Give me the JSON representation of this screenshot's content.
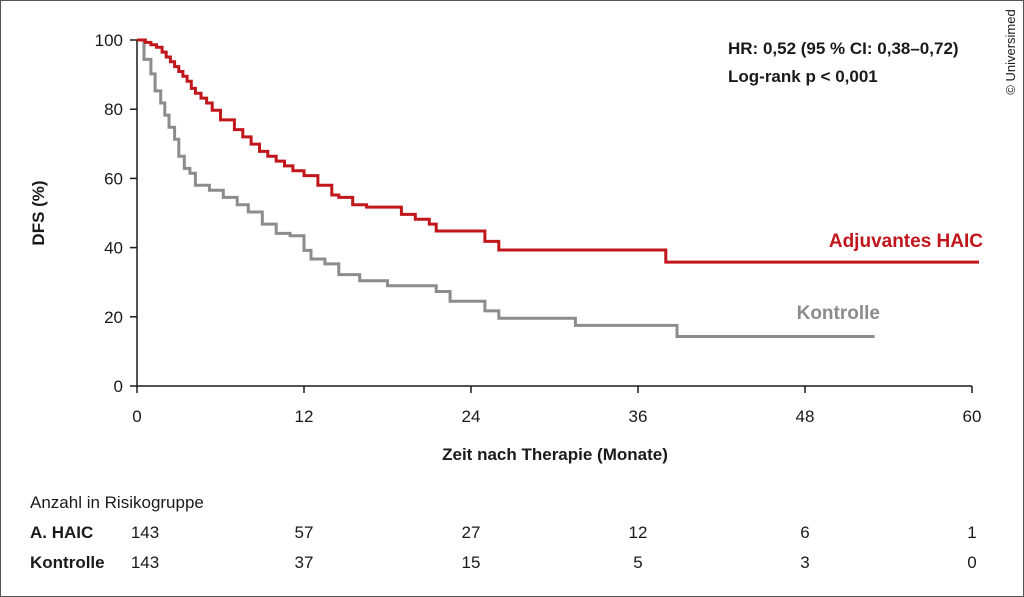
{
  "copyright": "© Universimed",
  "chart_data": {
    "type": "line",
    "step": true,
    "xlabel": "Zeit nach Therapie (Monate)",
    "ylabel": "DFS (%)",
    "xlim": [
      0,
      60
    ],
    "ylim": [
      0,
      100
    ],
    "xticks": [
      0,
      12,
      24,
      36,
      48,
      60
    ],
    "yticks": [
      0,
      20,
      40,
      60,
      80,
      100
    ],
    "grid": false,
    "annotations": {
      "hr": "HR: 0,52 (95 % CI: 0,38–0,72)",
      "logrank": "Log-rank p < 0,001"
    },
    "series": [
      {
        "name": "Adjuvantes HAIC",
        "color": "#c0161c",
        "x": [
          0,
          0.6,
          1.0,
          1.4,
          1.8,
          2.1,
          2.4,
          2.7,
          3.0,
          3.3,
          3.6,
          3.9,
          4.2,
          4.6,
          5.0,
          5.4,
          6.0,
          7.0,
          7.6,
          8.2,
          8.8,
          9.4,
          10.0,
          10.6,
          11.2,
          12.0,
          13.0,
          14.0,
          14.5,
          15.5,
          16.5,
          19.0,
          20.0,
          21.0,
          21.5,
          25.0,
          26.0,
          38.0,
          60.5
        ],
        "y": [
          100,
          99.3,
          98.6,
          97.9,
          96.5,
          95.1,
          93.7,
          92.3,
          90.9,
          89.5,
          88.1,
          86.0,
          84.6,
          83.2,
          81.8,
          79.7,
          76.9,
          74.1,
          72.0,
          69.9,
          67.8,
          66.4,
          65.0,
          63.6,
          62.2,
          60.8,
          58.0,
          55.2,
          54.5,
          52.4,
          51.7,
          49.6,
          48.2,
          46.8,
          44.8,
          41.8,
          39.3,
          35.8,
          35.8
        ]
      },
      {
        "name": "Kontrolle",
        "color": "#8c8c8c",
        "x": [
          0,
          0.5,
          1.0,
          1.3,
          1.7,
          2.0,
          2.3,
          2.7,
          3.0,
          3.4,
          3.8,
          4.2,
          5.2,
          6.2,
          7.2,
          8.0,
          9.0,
          10.0,
          11.0,
          12.0,
          12.5,
          13.5,
          14.5,
          16.0,
          18.0,
          21.5,
          22.5,
          25.0,
          26.0,
          31.5,
          38.8,
          53.0
        ],
        "y": [
          100,
          94.4,
          90.2,
          85.3,
          81.8,
          78.3,
          74.8,
          71.3,
          66.4,
          62.9,
          61.5,
          58.0,
          56.6,
          54.5,
          52.4,
          50.3,
          46.8,
          44.1,
          43.4,
          39.2,
          36.7,
          35.3,
          32.2,
          30.4,
          29.0,
          27.3,
          24.5,
          21.7,
          19.6,
          17.5,
          14.3,
          14.3
        ]
      }
    ],
    "risk_table": {
      "title": "Anzahl in Risikogruppe",
      "rows": [
        {
          "label": "A. HAIC",
          "color": "#c0161c",
          "values": [
            "143",
            "57",
            "27",
            "12",
            "6",
            "1"
          ]
        },
        {
          "label": "Kontrolle",
          "color": "#8c8c8c",
          "values": [
            "143",
            "37",
            "15",
            "5",
            "3",
            "0"
          ]
        }
      ]
    }
  }
}
